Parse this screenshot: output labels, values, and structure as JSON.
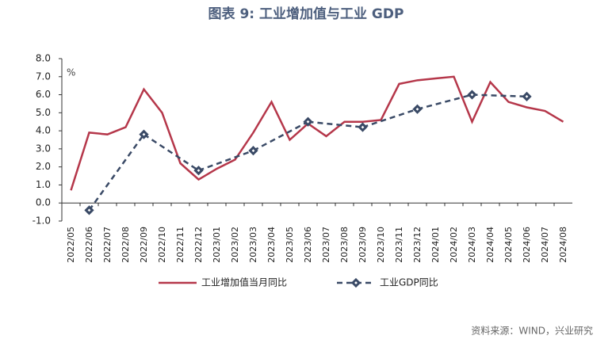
{
  "chart_data": {
    "type": "line",
    "title": "图表 9:  工业增加值与工业 GDP",
    "y_unit_label": "%",
    "source": "资料来源：WIND，兴业研究",
    "categories": [
      "2022/05",
      "2022/06",
      "2022/07",
      "2022/08",
      "2022/09",
      "2022/10",
      "2022/11",
      "2022/12",
      "2023/01",
      "2023/02",
      "2023/03",
      "2023/04",
      "2023/05",
      "2023/06",
      "2023/07",
      "2023/08",
      "2023/09",
      "2023/10",
      "2023/11",
      "2023/12",
      "2024/01",
      "2024/02",
      "2024/03",
      "2024/04",
      "2024/05",
      "2024/06",
      "2024/07",
      "2024/08"
    ],
    "series": [
      {
        "name": "工业增加值当月同比",
        "color": "#b5374a",
        "dashed": false,
        "values": [
          0.7,
          3.9,
          3.8,
          4.2,
          6.3,
          5.0,
          2.2,
          1.3,
          1.9,
          2.4,
          3.9,
          5.6,
          3.5,
          4.4,
          3.7,
          4.5,
          4.5,
          4.6,
          6.6,
          6.8,
          6.9,
          7.0,
          4.5,
          6.7,
          5.6,
          5.3,
          5.1,
          4.5
        ]
      },
      {
        "name": "工业GDP同比",
        "color": "#3a4a66",
        "dashed": true,
        "values": [
          null,
          -0.4,
          null,
          null,
          3.8,
          null,
          null,
          1.8,
          null,
          null,
          2.9,
          null,
          null,
          4.5,
          null,
          null,
          4.2,
          null,
          null,
          5.2,
          null,
          null,
          6.0,
          null,
          null,
          5.9,
          null,
          null
        ]
      }
    ],
    "ylim": [
      -1,
      8
    ],
    "yticks": [
      {
        "value": -1,
        "label": "-1.0"
      },
      {
        "value": 0,
        "label": "0.0"
      },
      {
        "value": 1,
        "label": "1.0"
      },
      {
        "value": 2,
        "label": "2.0"
      },
      {
        "value": 3,
        "label": "3.0"
      },
      {
        "value": 4,
        "label": "4.0"
      },
      {
        "value": 5,
        "label": "5.0"
      },
      {
        "value": 6,
        "label": "6.0"
      },
      {
        "value": 7,
        "label": "7.0"
      },
      {
        "value": 8,
        "label": "8.0"
      }
    ],
    "grid": false
  }
}
